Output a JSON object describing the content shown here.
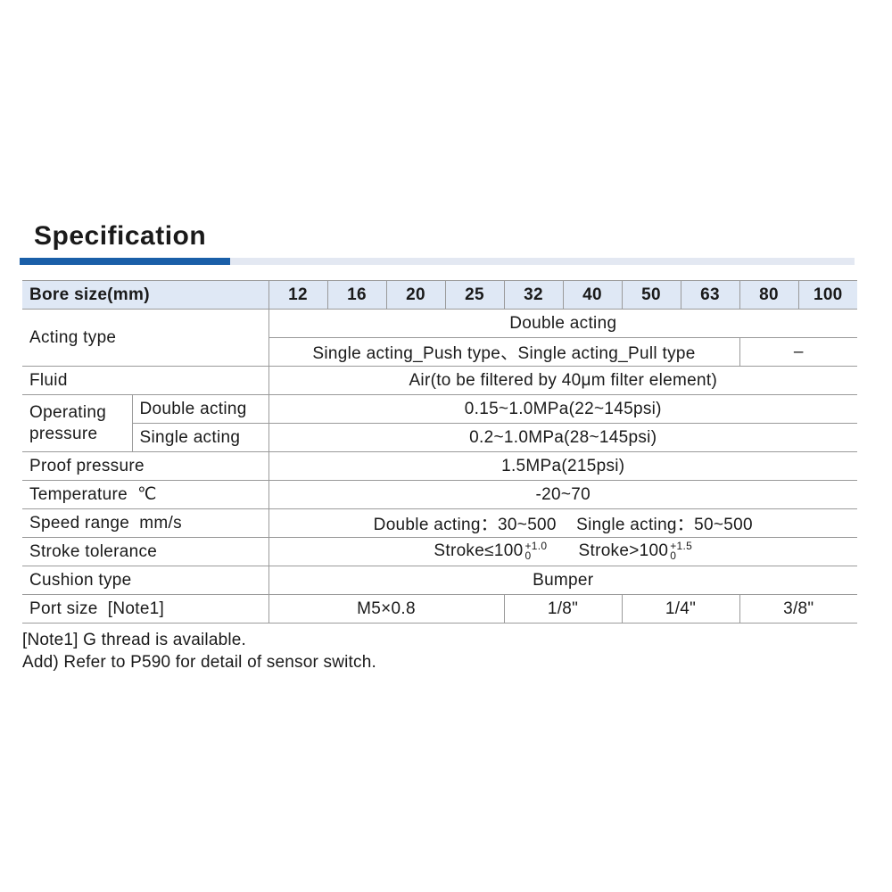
{
  "title": "Specification",
  "colors": {
    "accent": "#1a5fa8",
    "header_bg": "#dfe8f5"
  },
  "table": {
    "header_label": "Bore size(mm)",
    "bore_sizes": [
      "12",
      "16",
      "20",
      "25",
      "32",
      "40",
      "50",
      "63",
      "80",
      "100"
    ],
    "acting_type": {
      "label": "Acting type",
      "double": "Double acting",
      "single": "Single acting_Push type、Single acting_Pull type",
      "single_100": "–"
    },
    "fluid": {
      "label": "Fluid",
      "value": "Air(to be filtered by 40μm filter element)"
    },
    "operating_pressure": {
      "label": "Operating pressure",
      "double_label": "Double acting",
      "double_value": "0.15~1.0MPa(22~145psi)",
      "single_label": "Single acting",
      "single_value": "0.2~1.0MPa(28~145psi)"
    },
    "proof_pressure": {
      "label": "Proof pressure",
      "value": "1.5MPa(215psi)"
    },
    "temperature": {
      "label": "Temperature  ℃",
      "value": "-20~70"
    },
    "speed_range": {
      "label": "Speed range  mm/s",
      "value": "Double acting：30~500    Single acting：50~500"
    },
    "stroke_tolerance": {
      "label": "Stroke tolerance",
      "a_text": "Stroke≤100",
      "a_upper": "+1.0",
      "a_lower": "0",
      "b_text": "Stroke>100",
      "b_upper": "+1.5",
      "b_lower": "0"
    },
    "cushion_type": {
      "label": "Cushion type",
      "value": "Bumper"
    },
    "port_size": {
      "label": "Port size  [Note1]",
      "values": [
        "M5×0.8",
        "1/8\"",
        "1/4\"",
        "3/8\""
      ]
    }
  },
  "notes": [
    "[Note1] G thread is available.",
    "Add) Refer to P590 for detail of sensor switch."
  ]
}
